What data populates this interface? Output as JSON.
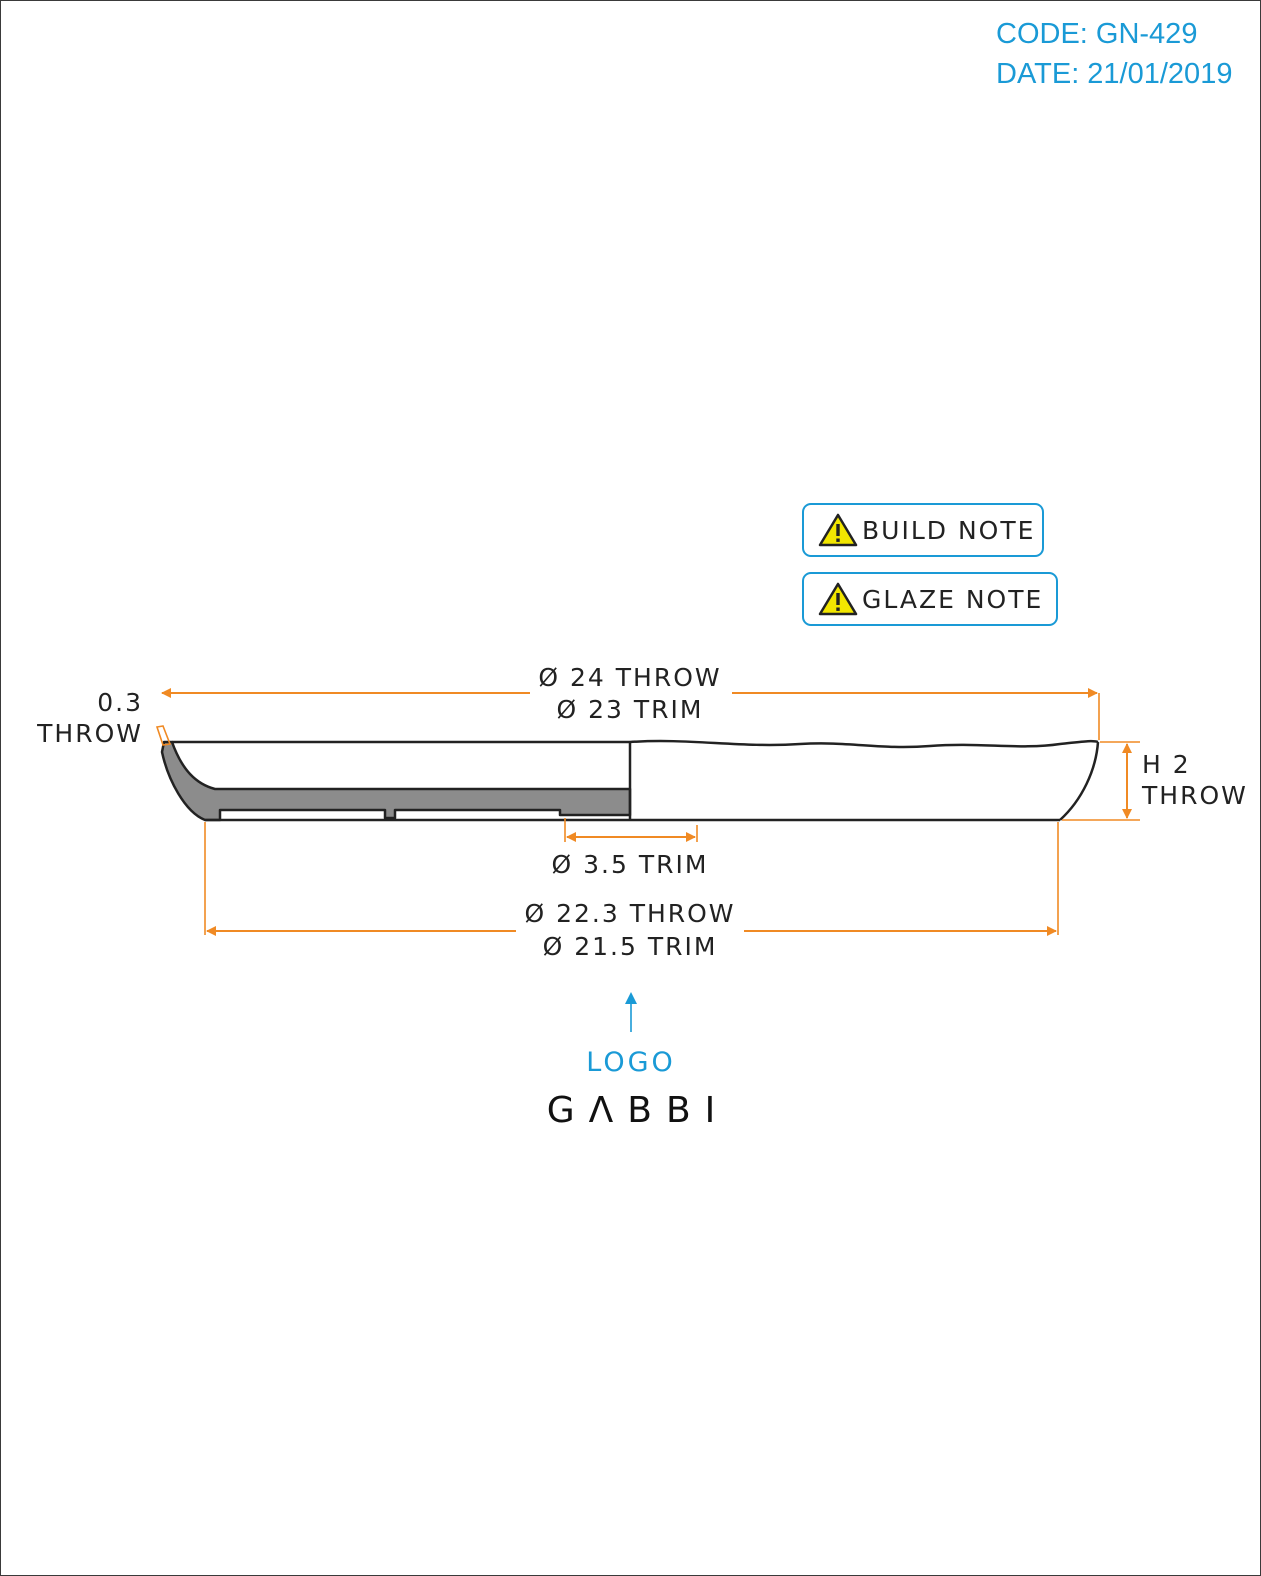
{
  "header": {
    "code": "CODE: GN-429",
    "date": "DATE: 21/01/2019"
  },
  "notes": {
    "build_label": "BUILD NOTE",
    "glaze_label": "GLAZE NOTE"
  },
  "icons": {
    "note": "warning-icon",
    "logo_pointer": "arrow-up-icon"
  },
  "dimensions": {
    "outer_throw": "Ø 24 THROW",
    "outer_trim": "Ø 23 TRIM",
    "wall_value": "0.3",
    "wall_unit": "THROW",
    "height_value": "H 2",
    "height_unit": "THROW",
    "foot_trim": "Ø 3.5 TRIM",
    "base_throw": "Ø 22.3 THROW",
    "base_trim": "Ø 21.5 TRIM"
  },
  "logo": {
    "label": "LOGO",
    "brand": "GΛBBI"
  },
  "colors": {
    "accent": "#1a9ad6",
    "dimension": "#f08a24",
    "section_fill": "#8c8c8c",
    "warning": "#f2e600",
    "outline": "#222222"
  }
}
